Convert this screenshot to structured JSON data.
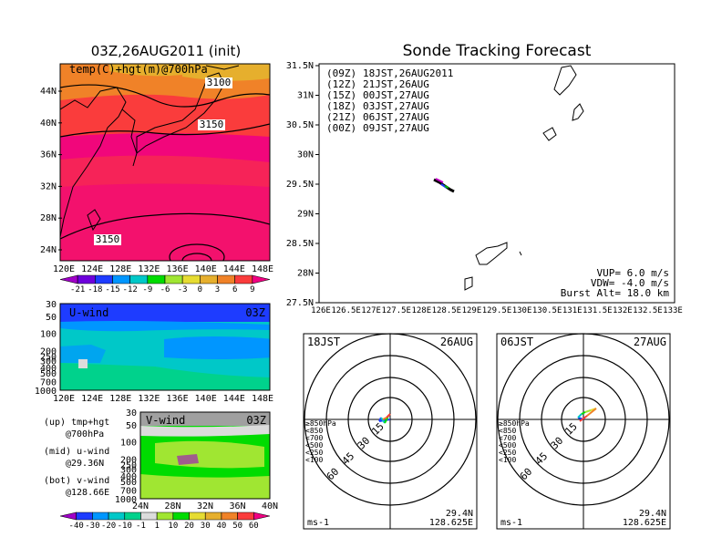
{
  "left_panel": {
    "title": "03Z,26AUG2011 (init)",
    "top_map": {
      "label": "temp(C)+hgt(m)@700hPa",
      "contour_labels": [
        "3100",
        "3150",
        "3150"
      ],
      "lat_ticks": [
        "44N",
        "40N",
        "36N",
        "32N",
        "28N",
        "24N"
      ],
      "lon_ticks": [
        "120E",
        "124E",
        "128E",
        "132E",
        "136E",
        "140E",
        "144E",
        "148E"
      ]
    },
    "temp_colorbar": {
      "labels": [
        "-21",
        "-18",
        "-15",
        "-12",
        "-9",
        "-6",
        "-3",
        "0",
        "3",
        "6",
        "9"
      ],
      "colors": [
        "#a000c8",
        "#6e00dc",
        "#1e3cff",
        "#0096ff",
        "#00c8c8",
        "#00dc00",
        "#a0e632",
        "#e6dc32",
        "#e6af2d",
        "#f08228",
        "#fa3c3c",
        "#f00082"
      ]
    },
    "u_wind": {
      "label": "U-wind",
      "time": "03Z",
      "y_ticks": [
        "30",
        "50",
        "100",
        "200",
        "250",
        "300",
        "400",
        "500",
        "700",
        "1000"
      ],
      "lon_ticks": [
        "120E",
        "124E",
        "128E",
        "132E",
        "136E",
        "140E",
        "144E",
        "148E"
      ]
    },
    "v_wind": {
      "label": "V-wind",
      "time": "03Z",
      "y_ticks": [
        "30",
        "50",
        "100",
        "200",
        "250",
        "300",
        "400",
        "500",
        "700",
        "1000"
      ],
      "lat_ticks": [
        "24N",
        "28N",
        "32N",
        "36N",
        "40N"
      ]
    },
    "legend": [
      {
        "line1": "(up) tmp+hgt",
        "line2": "@700hPa"
      },
      {
        "line1": "(mid) u-wind",
        "line2": "@29.36N"
      },
      {
        "line1": "(bot) v-wind",
        "line2": "@128.66E"
      }
    ],
    "wind_colorbar": {
      "labels": [
        "-40",
        "-30",
        "-20",
        "-10",
        "-1",
        "1",
        "10",
        "20",
        "30",
        "40",
        "50",
        "60"
      ],
      "colors": [
        "#a000c8",
        "#1e3cff",
        "#0096ff",
        "#00c8c8",
        "#00d28c",
        "#dcdcdc",
        "#a0e632",
        "#00dc00",
        "#e6dc32",
        "#e6af2d",
        "#f08228",
        "#fa3c3c",
        "#f00082"
      ]
    }
  },
  "tracking": {
    "title": "Sonde Tracking Forecast",
    "lat_ticks": [
      "31.5N",
      "31N",
      "30.5N",
      "30N",
      "29.5N",
      "29N",
      "28.5N",
      "28N",
      "27.5N"
    ],
    "lon_ticks": [
      "126E",
      "126.5E",
      "127E",
      "127.5E",
      "128E",
      "128.5E",
      "129E",
      "129.5E",
      "130E",
      "130.5E",
      "131E",
      "131.5E",
      "132E",
      "132.5E",
      "133E"
    ],
    "forecast_legend": [
      {
        "utc": "(09Z)",
        "jst": "18JST,26AUG2011",
        "color": "#000000"
      },
      {
        "utc": "(12Z)",
        "jst": "21JST,26AUG",
        "color": "#c800c8"
      },
      {
        "utc": "(15Z)",
        "jst": "00JST,27AUG",
        "color": "#1e3cff"
      },
      {
        "utc": "(18Z)",
        "jst": "03JST,27AUG",
        "color": "#00b400"
      },
      {
        "utc": "(21Z)",
        "jst": "06JST,27AUG",
        "color": "#e6c800"
      },
      {
        "utc": "(00Z)",
        "jst": "09JST,27AUG",
        "color": "#f08228"
      }
    ],
    "params": [
      "VUP= 6.0 m/s",
      "VDW= -4.0 m/s",
      "Burst Alt= 18.0 km"
    ]
  },
  "hodographs": [
    {
      "time": "18JST",
      "date": "26AUG",
      "ring_labels": [
        "15",
        "30",
        "45",
        "60"
      ],
      "unit": "ms-1",
      "lat": "29.4N",
      "lon": "128.625E",
      "levels": [
        {
          "label": "≥850hPa",
          "color": "#fa3c3c"
        },
        {
          "label": "<850",
          "color": "#f08228"
        },
        {
          "label": "<700",
          "color": "#e6dc32"
        },
        {
          "label": "<500",
          "color": "#00dc00"
        },
        {
          "label": "<250",
          "color": "#00c8c8"
        },
        {
          "label": "<100",
          "color": "#1e3cff"
        }
      ]
    },
    {
      "time": "06JST",
      "date": "27AUG",
      "ring_labels": [
        "15",
        "30",
        "45",
        "60"
      ],
      "unit": "ms-1",
      "lat": "29.4N",
      "lon": "128.625E",
      "levels": [
        {
          "label": "≥850hPa",
          "color": "#fa3c3c"
        },
        {
          "label": "<850",
          "color": "#f08228"
        },
        {
          "label": "<700",
          "color": "#e6dc32"
        },
        {
          "label": "<500",
          "color": "#00dc00"
        },
        {
          "label": "<250",
          "color": "#00c8c8"
        },
        {
          "label": "<100",
          "color": "#1e3cff"
        }
      ]
    }
  ]
}
